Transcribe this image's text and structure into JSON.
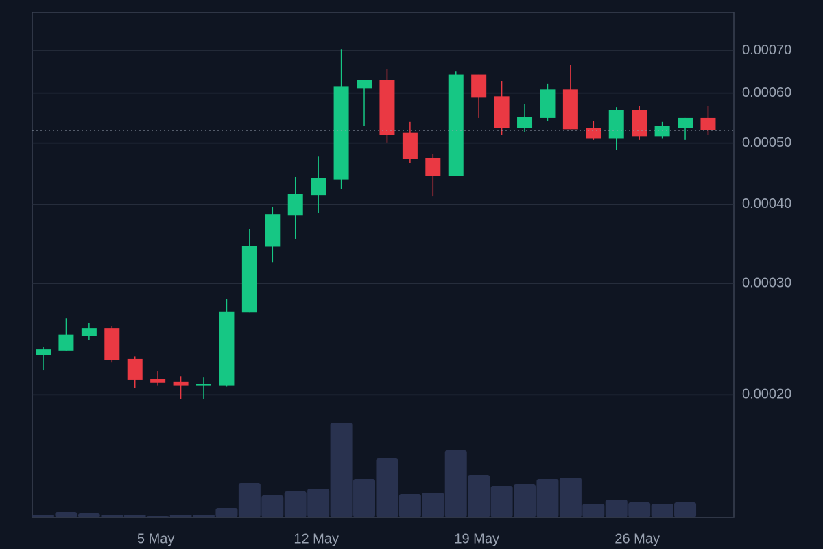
{
  "chart_data": {
    "type": "candlestick",
    "categories": [
      null,
      null,
      null,
      null,
      null,
      "5 May",
      null,
      null,
      null,
      null,
      null,
      null,
      "12 May",
      null,
      null,
      null,
      null,
      null,
      null,
      "19 May",
      null,
      null,
      null,
      null,
      null,
      null,
      "26 May",
      null,
      null,
      null
    ],
    "open": [
      0.000231,
      0.000235,
      0.000248,
      0.000255,
      0.000228,
      0.000212,
      0.00021,
      0.000207,
      0.000207,
      0.00027,
      0.000343,
      0.000384,
      0.000414,
      0.000438,
      0.000611,
      0.00063,
      0.000519,
      0.000474,
      0.000444,
      0.000642,
      0.000593,
      0.000529,
      0.000548,
      0.000608,
      0.000529,
      0.000509,
      0.000564,
      0.000513,
      0.000529,
      0.000548
    ],
    "high": [
      0.000238,
      0.000264,
      0.00026,
      0.000257,
      0.00023,
      0.000218,
      0.000214,
      0.000213,
      0.000284,
      0.000366,
      0.000396,
      0.000442,
      0.000476,
      0.000703,
      0.00063,
      0.000655,
      0.00054,
      0.000481,
      0.000649,
      0.000642,
      0.000627,
      0.000576,
      0.000621,
      0.000665,
      0.000542,
      0.00057,
      0.000573,
      0.00054,
      0.000548,
      0.000573
    ],
    "low": [
      0.000219,
      0.000235,
      0.000244,
      0.000225,
      0.000205,
      0.000207,
      0.000197,
      0.000197,
      0.000206,
      0.00027,
      0.000324,
      0.000353,
      0.000388,
      0.000423,
      0.000532,
      0.000501,
      0.000465,
      0.000412,
      0.000444,
      0.000548,
      0.000516,
      0.000521,
      0.000542,
      0.000526,
      0.000506,
      0.000488,
      0.000506,
      0.000509,
      0.000506,
      0.000516
    ],
    "close": [
      0.000236,
      0.000249,
      0.000255,
      0.000227,
      0.000211,
      0.000209,
      0.000207,
      0.000208,
      0.000271,
      0.000344,
      0.000386,
      0.000416,
      0.00044,
      0.000614,
      0.00063,
      0.000516,
      0.000472,
      0.000444,
      0.000642,
      0.00059,
      0.000529,
      0.00055,
      0.000608,
      0.000526,
      0.000509,
      0.000564,
      0.000513,
      0.000532,
      0.000548,
      0.000524
    ],
    "volume": [
      4,
      8,
      6,
      4,
      4,
      2,
      4,
      4,
      14,
      50,
      32,
      38,
      42,
      138,
      56,
      86,
      34,
      36,
      98,
      62,
      46,
      48,
      56,
      58,
      20,
      26,
      22,
      20,
      22,
      null
    ],
    "up_color": "#16c784",
    "down_color": "#ea3943",
    "volume_color": "#29324f",
    "log_scale": true,
    "grid": true,
    "ylim": [
      0.000128,
      0.000805
    ],
    "yticks": [
      {
        "value": 0.0002,
        "label": "0.00020"
      },
      {
        "value": 0.0003,
        "label": "0.00030"
      },
      {
        "value": 0.0004,
        "label": "0.00040"
      },
      {
        "value": 0.0005,
        "label": "0.00050"
      },
      {
        "value": 0.0006,
        "label": "0.00060"
      },
      {
        "value": 0.0007,
        "label": "0.00070"
      }
    ]
  }
}
